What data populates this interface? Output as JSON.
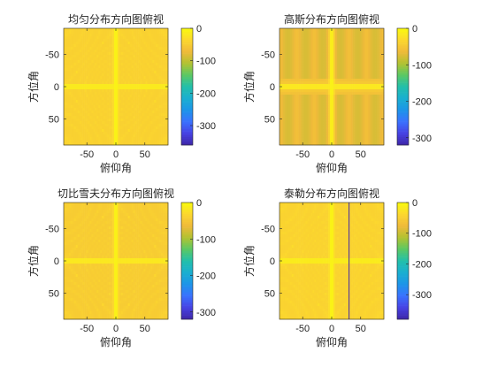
{
  "figure": {
    "background": "#ffffff"
  },
  "colormap": {
    "name": "parula",
    "stops": [
      "#3e26a8",
      "#4742e4",
      "#3a72fe",
      "#1d95e8",
      "#1aafd0",
      "#23bfaa",
      "#5cc863",
      "#b3c231",
      "#f0ba3a",
      "#fcd82e",
      "#f9fb0e"
    ]
  },
  "chart_data": [
    {
      "type": "heatmap",
      "title": "均匀分布方向图俯视",
      "xlabel": "俯仰角",
      "ylabel": "方位角",
      "xlim": [
        -90,
        90
      ],
      "ylim": [
        -90,
        90
      ],
      "y_reversed": true,
      "xticks": [
        -50,
        0,
        50
      ],
      "yticks": [
        -50,
        0,
        50
      ],
      "xtick_labels": [
        "-50",
        "0",
        "50"
      ],
      "ytick_labels": [
        "-50",
        "0",
        "50"
      ],
      "clim": [
        -360,
        0
      ],
      "colorbar_ticks": [
        0,
        -100,
        -200,
        -300
      ],
      "colorbar_tick_labels": [
        "0",
        "-100",
        "-200",
        "-300"
      ],
      "pattern": "uniform",
      "dominant_level_db": -45
    },
    {
      "type": "heatmap",
      "title": "高斯分布方向图俯视",
      "xlabel": "俯仰角",
      "ylabel": "方位角",
      "xlim": [
        -90,
        90
      ],
      "ylim": [
        -90,
        90
      ],
      "y_reversed": true,
      "xticks": [
        -50,
        0,
        50
      ],
      "yticks": [
        -50,
        0,
        50
      ],
      "xtick_labels": [
        "-50",
        "0",
        "50"
      ],
      "ytick_labels": [
        "-50",
        "0",
        "50"
      ],
      "clim": [
        -320,
        0
      ],
      "colorbar_ticks": [
        0,
        -100,
        -200,
        -300
      ],
      "colorbar_tick_labels": [
        "0",
        "-100",
        "-200",
        "-300"
      ],
      "pattern": "gaussian",
      "dominant_level_db": -70
    },
    {
      "type": "heatmap",
      "title": "切比雪夫分布方向图俯视",
      "xlabel": "俯仰角",
      "ylabel": "方位角",
      "xlim": [
        -90,
        90
      ],
      "ylim": [
        -90,
        90
      ],
      "y_reversed": true,
      "xticks": [
        -50,
        0,
        50
      ],
      "yticks": [
        -50,
        0,
        50
      ],
      "xtick_labels": [
        "-50",
        "0",
        "50"
      ],
      "ytick_labels": [
        "-50",
        "0",
        "50"
      ],
      "clim": [
        -320,
        0
      ],
      "colorbar_ticks": [
        0,
        -100,
        -200,
        -300
      ],
      "colorbar_tick_labels": [
        "0",
        "-100",
        "-200",
        "-300"
      ],
      "pattern": "chebyshev",
      "dominant_level_db": -45
    },
    {
      "type": "heatmap",
      "title": "泰勒分布方向图俯视",
      "xlabel": "俯仰角",
      "ylabel": "方位角",
      "xlim": [
        -90,
        90
      ],
      "ylim": [
        -90,
        90
      ],
      "y_reversed": true,
      "xticks": [
        -50,
        0,
        50
      ],
      "yticks": [
        -50,
        0,
        50
      ],
      "xtick_labels": [
        "-50",
        "0",
        "50"
      ],
      "ytick_labels": [
        "-50",
        "0",
        "50"
      ],
      "clim": [
        -380,
        0
      ],
      "colorbar_ticks": [
        0,
        -100,
        -200,
        -300
      ],
      "colorbar_tick_labels": [
        "0",
        "-100",
        "-200",
        "-300"
      ],
      "pattern": "taylor",
      "dominant_level_db": -45,
      "deep_null_x": 30
    }
  ]
}
